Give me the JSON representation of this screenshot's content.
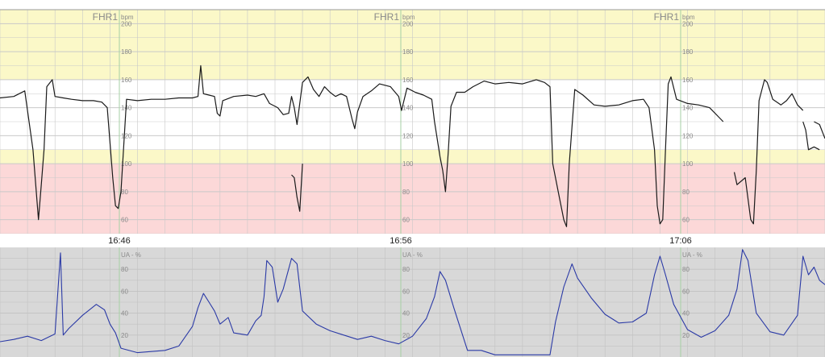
{
  "colors": {
    "normal_band": "#ffffff",
    "caution_band": "#fbf8c8",
    "alarm_band": "#fcd8d8",
    "grid": "#c9c9c9",
    "time_marker": "#a6cfa4",
    "fhr_trace": "#1a1a1a",
    "ua_trace": "#2b3aa6",
    "ua_background": "#d8d8d8"
  },
  "time_labels": [
    "16:46",
    "16:56",
    "17:06"
  ],
  "chart_data": [
    {
      "type": "line",
      "label": "FHR1",
      "unit": "bpm",
      "y_ticks": [
        60,
        80,
        100,
        120,
        140,
        160,
        180,
        200
      ],
      "ylim": [
        50,
        210
      ],
      "x_minutes": [
        0,
        30
      ],
      "bands": [
        {
          "from": 160,
          "to": 210,
          "color_key": "caution_band"
        },
        {
          "from": 110,
          "to": 160,
          "color_key": "normal_band"
        },
        {
          "from": 100,
          "to": 110,
          "color_key": "caution_band"
        },
        {
          "from": 50,
          "to": 100,
          "color_key": "alarm_band"
        }
      ],
      "segments": [
        [
          [
            0,
            147
          ],
          [
            0.5,
            148
          ],
          [
            0.9,
            152
          ],
          [
            1.2,
            110
          ],
          [
            1.4,
            60
          ],
          [
            1.5,
            85
          ],
          [
            1.6,
            110
          ],
          [
            1.7,
            155
          ],
          [
            1.9,
            160
          ],
          [
            2.0,
            148
          ],
          [
            2.3,
            147
          ],
          [
            2.6,
            146
          ],
          [
            3,
            145
          ],
          [
            3.4,
            145
          ],
          [
            3.7,
            144
          ],
          [
            3.9,
            140
          ],
          [
            4.1,
            90
          ],
          [
            4.2,
            70
          ],
          [
            4.3,
            68
          ],
          [
            4.4,
            80
          ],
          [
            4.6,
            146
          ],
          [
            5,
            145
          ],
          [
            5.5,
            146
          ],
          [
            6,
            146
          ],
          [
            6.5,
            147
          ],
          [
            7,
            147
          ],
          [
            7.2,
            148
          ],
          [
            7.3,
            170
          ],
          [
            7.4,
            150
          ],
          [
            7.6,
            149
          ],
          [
            7.8,
            148
          ],
          [
            7.9,
            136
          ],
          [
            8.0,
            134
          ],
          [
            8.1,
            145
          ],
          [
            8.5,
            148
          ],
          [
            9,
            149
          ],
          [
            9.3,
            148
          ],
          [
            9.6,
            150
          ],
          [
            9.8,
            143
          ],
          [
            10.1,
            140
          ],
          [
            10.3,
            135
          ],
          [
            10.5,
            136
          ],
          [
            10.6,
            148
          ],
          [
            10.7,
            140
          ],
          [
            10.8,
            128
          ],
          [
            11.0,
            158
          ],
          [
            11.2,
            162
          ],
          [
            11.4,
            153
          ],
          [
            11.6,
            148
          ],
          [
            11.8,
            155
          ],
          [
            12.0,
            151
          ],
          [
            12.2,
            148
          ],
          [
            12.4,
            150
          ],
          [
            12.6,
            148
          ],
          [
            12.8,
            132
          ],
          [
            12.9,
            125
          ],
          [
            13.0,
            137
          ],
          [
            13.2,
            148
          ],
          [
            13.5,
            152
          ],
          [
            13.8,
            157
          ],
          [
            14,
            156
          ],
          [
            14.2,
            155
          ],
          [
            14.5,
            148
          ],
          [
            14.6,
            138
          ],
          [
            14.8,
            154
          ],
          [
            15.1,
            151
          ],
          [
            15.4,
            149
          ],
          [
            15.7,
            146
          ],
          [
            15.8,
            130
          ],
          [
            16.0,
            105
          ],
          [
            16.1,
            95
          ],
          [
            16.2,
            80
          ],
          [
            16.3,
            108
          ],
          [
            16.4,
            141
          ],
          [
            16.6,
            151
          ],
          [
            16.9,
            151
          ],
          [
            17.2,
            155
          ],
          [
            17.6,
            159
          ],
          [
            18,
            157
          ],
          [
            18.5,
            158
          ],
          [
            19,
            157
          ],
          [
            19.5,
            160
          ],
          [
            19.8,
            158
          ],
          [
            20.0,
            155
          ],
          [
            20.1,
            100
          ],
          [
            20.3,
            80
          ],
          [
            20.5,
            60
          ],
          [
            20.6,
            55
          ],
          [
            20.7,
            100
          ],
          [
            20.9,
            153
          ],
          [
            21.2,
            149
          ],
          [
            21.6,
            142
          ],
          [
            22,
            141
          ],
          [
            22.5,
            142
          ],
          [
            23,
            145
          ],
          [
            23.4,
            146
          ],
          [
            23.6,
            140
          ],
          [
            23.8,
            110
          ],
          [
            23.9,
            70
          ],
          [
            24.0,
            57
          ],
          [
            24.1,
            60
          ],
          [
            24.2,
            110
          ],
          [
            24.3,
            157
          ],
          [
            24.4,
            162
          ],
          [
            24.6,
            146
          ],
          [
            25,
            143
          ],
          [
            25.4,
            142
          ],
          [
            25.8,
            140
          ],
          [
            26.1,
            134
          ],
          [
            26.3,
            130
          ]
        ],
        [
          [
            10.6,
            92
          ],
          [
            10.7,
            90
          ],
          [
            10.8,
            76
          ],
          [
            10.9,
            66
          ],
          [
            11.0,
            100
          ]
        ],
        [
          [
            26.7,
            94
          ],
          [
            26.8,
            85
          ],
          [
            27.1,
            90
          ],
          [
            27.2,
            75
          ],
          [
            27.3,
            60
          ],
          [
            27.4,
            57
          ],
          [
            27.5,
            95
          ],
          [
            27.6,
            145
          ],
          [
            27.8,
            160
          ],
          [
            27.9,
            158
          ],
          [
            28.1,
            146
          ],
          [
            28.4,
            142
          ],
          [
            28.6,
            145
          ],
          [
            28.8,
            150
          ],
          [
            29.0,
            142
          ],
          [
            29.1,
            140
          ],
          [
            29.2,
            138
          ]
        ],
        [
          [
            29.2,
            130
          ],
          [
            29.3,
            124
          ],
          [
            29.4,
            110
          ],
          [
            29.6,
            112
          ],
          [
            29.8,
            110
          ]
        ],
        [
          [
            29.6,
            130
          ],
          [
            29.8,
            128
          ],
          [
            29.9,
            123
          ],
          [
            30,
            118
          ]
        ]
      ]
    },
    {
      "type": "line",
      "label": "UA - %",
      "y_ticks": [
        20,
        40,
        60,
        80
      ],
      "ylim": [
        0,
        100
      ],
      "x_minutes": [
        0,
        30
      ],
      "series": [
        {
          "values": [
            [
              0,
              14
            ],
            [
              0.5,
              16
            ],
            [
              1,
              19
            ],
            [
              1.5,
              15
            ],
            [
              2,
              21
            ],
            [
              2.2,
              95
            ],
            [
              2.3,
              20
            ],
            [
              2.5,
              26
            ],
            [
              3,
              38
            ],
            [
              3.5,
              48
            ],
            [
              3.8,
              43
            ],
            [
              4,
              30
            ],
            [
              4.2,
              22
            ],
            [
              4.4,
              8
            ],
            [
              5,
              4
            ],
            [
              6,
              6
            ],
            [
              6.5,
              10
            ],
            [
              7,
              28
            ],
            [
              7.2,
              45
            ],
            [
              7.4,
              58
            ],
            [
              7.6,
              50
            ],
            [
              7.8,
              42
            ],
            [
              8,
              30
            ],
            [
              8.3,
              36
            ],
            [
              8.5,
              22
            ],
            [
              9,
              20
            ],
            [
              9.3,
              33
            ],
            [
              9.5,
              38
            ],
            [
              9.6,
              55
            ],
            [
              9.7,
              88
            ],
            [
              9.9,
              82
            ],
            [
              10.1,
              50
            ],
            [
              10.3,
              62
            ],
            [
              10.6,
              90
            ],
            [
              10.8,
              85
            ],
            [
              11,
              42
            ],
            [
              11.5,
              30
            ],
            [
              12,
              24
            ],
            [
              12.5,
              20
            ],
            [
              13,
              16
            ],
            [
              13.5,
              19
            ],
            [
              14,
              15
            ],
            [
              14.5,
              12
            ],
            [
              15,
              19
            ],
            [
              15.5,
              35
            ],
            [
              15.8,
              55
            ],
            [
              16,
              78
            ],
            [
              16.2,
              70
            ],
            [
              16.5,
              45
            ],
            [
              17,
              6
            ],
            [
              17.5,
              6
            ],
            [
              18,
              2
            ],
            [
              19,
              2
            ],
            [
              20,
              2
            ],
            [
              20.2,
              32
            ],
            [
              20.5,
              64
            ],
            [
              20.8,
              85
            ],
            [
              21,
              72
            ],
            [
              21.5,
              54
            ],
            [
              22,
              39
            ],
            [
              22.5,
              31
            ],
            [
              23,
              32
            ],
            [
              23.5,
              40
            ],
            [
              23.8,
              75
            ],
            [
              24,
              92
            ],
            [
              24.2,
              75
            ],
            [
              24.5,
              48
            ],
            [
              25,
              25
            ],
            [
              25.5,
              18
            ],
            [
              26,
              24
            ],
            [
              26.5,
              38
            ],
            [
              26.8,
              62
            ],
            [
              27,
              98
            ],
            [
              27.2,
              88
            ],
            [
              27.5,
              40
            ],
            [
              28,
              23
            ],
            [
              28.5,
              20
            ],
            [
              29,
              38
            ],
            [
              29.2,
              92
            ],
            [
              29.4,
              75
            ],
            [
              29.6,
              82
            ],
            [
              29.8,
              70
            ],
            [
              30,
              66
            ]
          ]
        }
      ]
    }
  ]
}
